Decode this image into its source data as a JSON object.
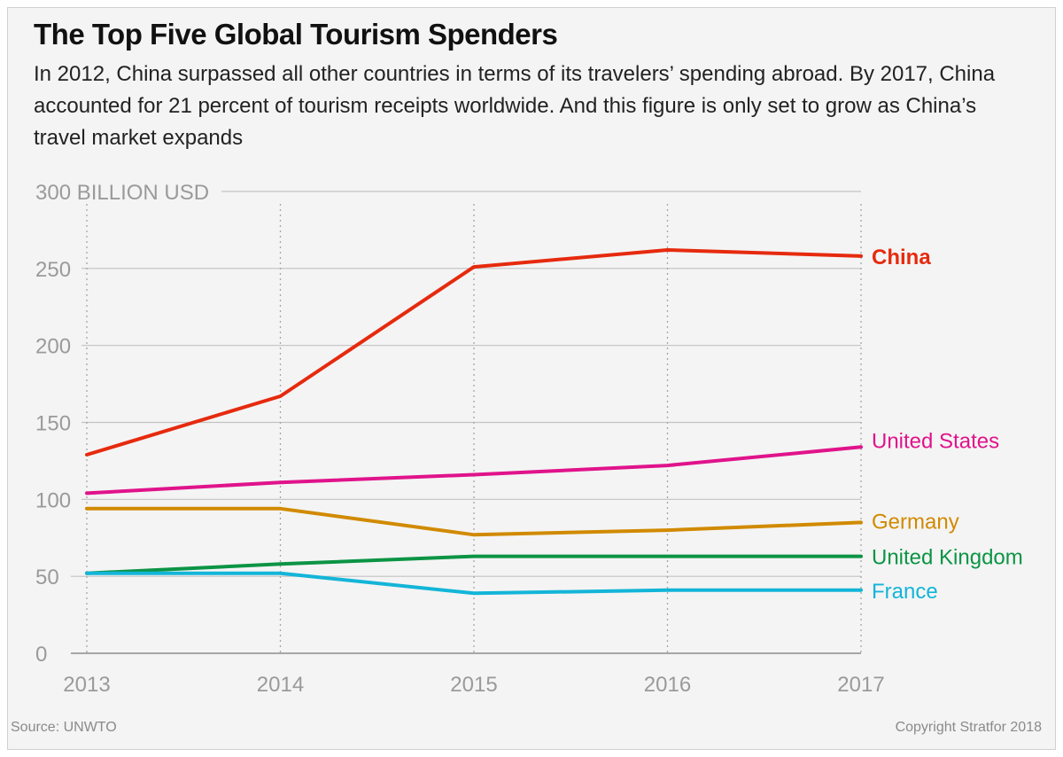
{
  "title": "The Top Five Global Tourism Spenders",
  "subtitle": "In 2012, China surpassed all other countries in terms of its travelers’ spending abroad. By 2017, China accounted for 21 percent of tourism receipts worldwide. And this figure is only set to grow as China’s travel market expands",
  "source": "Source: UNWTO",
  "copyright": "Copyright Stratfor 2018",
  "chart_data": {
    "type": "line",
    "x": [
      2013,
      2014,
      2015,
      2016,
      2017
    ],
    "x_tick_labels": [
      "2013",
      "2014",
      "2015",
      "2016",
      "2017"
    ],
    "y_ticks": [
      0,
      50,
      100,
      150,
      200,
      250,
      300
    ],
    "y_tick_labels": [
      "0",
      "50",
      "100",
      "150",
      "200",
      "250",
      "300"
    ],
    "y_unit_label": "BILLION USD",
    "ylim": [
      0,
      300
    ],
    "grid": true,
    "legend_placement": "right-end-labels",
    "series": [
      {
        "name": "China",
        "color": "#e62a0e",
        "bold": true,
        "values": [
          129,
          167,
          251,
          262,
          258
        ]
      },
      {
        "name": "United States",
        "color": "#e0138b",
        "bold": false,
        "values": [
          104,
          111,
          116,
          122,
          134
        ]
      },
      {
        "name": "Germany",
        "color": "#d18a00",
        "bold": false,
        "values": [
          94,
          94,
          77,
          80,
          85
        ]
      },
      {
        "name": "United Kingdom",
        "color": "#0b9444",
        "bold": false,
        "values": [
          52,
          58,
          63,
          63,
          63
        ]
      },
      {
        "name": "France",
        "color": "#13b5d8",
        "bold": false,
        "values": [
          52,
          52,
          39,
          41,
          41
        ]
      }
    ]
  }
}
